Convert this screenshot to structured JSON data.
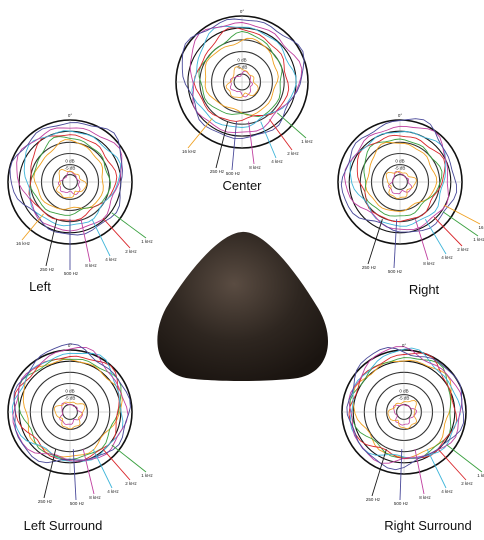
{
  "plots": [
    {
      "id": "center",
      "label": "Center",
      "top_mark": "0°",
      "db_marks": [
        "0 dB",
        "-5 dB"
      ],
      "freq_labels": [
        "16 kHz",
        "250 Hz",
        "500 Hz",
        "8 kHz",
        "4 kHz",
        "2 kHz",
        "1 kHz"
      ]
    },
    {
      "id": "left",
      "label": "Left",
      "top_mark": "0°",
      "db_marks": [
        "0 dB",
        "-5 dB"
      ],
      "freq_labels": [
        "16 kHz",
        "250 Hz",
        "500 Hz",
        "8 kHz",
        "4 kHz",
        "2 kHz",
        "1 kHz"
      ]
    },
    {
      "id": "right",
      "label": "Right",
      "top_mark": "0°",
      "db_marks": [
        "0 dB",
        "-5 dB"
      ],
      "freq_labels": [
        "250 Hz",
        "500 Hz",
        "8 kHz",
        "4 kHz",
        "2 kHz",
        "1 kHz",
        "16"
      ]
    },
    {
      "id": "left-surround",
      "label": "Left Surround",
      "top_mark": "0°",
      "db_marks": [
        "0 dB",
        "-5 dB"
      ],
      "freq_labels": [
        "250 Hz",
        "500 Hz",
        "8 kHz",
        "4 kHz",
        "2 kHz",
        "1 kHz"
      ]
    },
    {
      "id": "right-surround",
      "label": "Right Surround",
      "top_mark": "0°",
      "db_marks": [
        "0 dB",
        "-5 dB"
      ],
      "freq_labels": [
        "250 Hz",
        "500 Hz",
        "8 kHz",
        "4 kHz",
        "2 kHz",
        "1 kHz"
      ]
    }
  ],
  "series_colors": {
    "250 Hz": "#1a1a1a",
    "500 Hz": "#4a4a9a",
    "1 kHz": "#3aa040",
    "2 kHz": "#d9262b",
    "4 kHz": "#3fb5d9",
    "8 kHz": "#c040a0",
    "16 kHz": "#f0a020"
  },
  "speaker_color": "#2e2620"
}
